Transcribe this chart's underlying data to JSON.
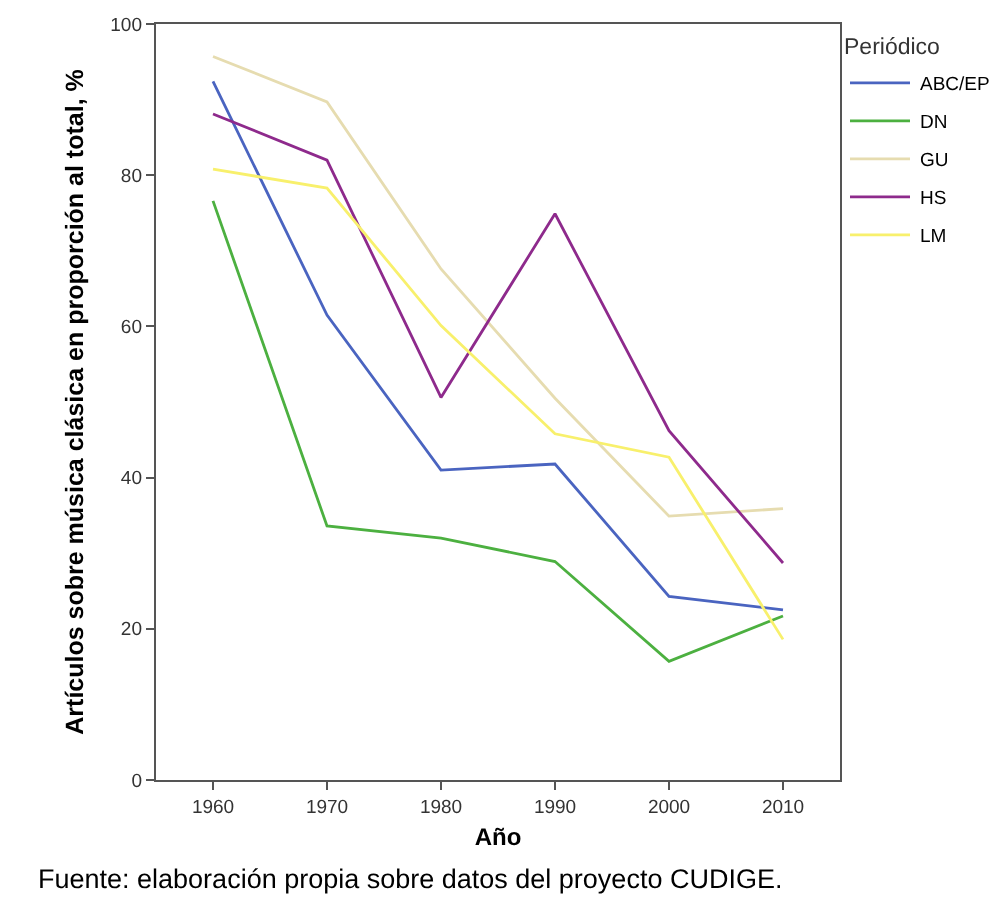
{
  "chart_data": {
    "type": "line",
    "xlabel": "Año",
    "ylabel": "Artículos sobre música clásica en proporción al total, %",
    "legend_title": "Periódico",
    "x": [
      1960,
      1970,
      1980,
      1990,
      2000,
      2010
    ],
    "series": [
      {
        "name": "ABC/EP",
        "color": "#4a64c0",
        "values": [
          92.4,
          61.5,
          41.0,
          41.8,
          24.3,
          22.5
        ]
      },
      {
        "name": "DN",
        "color": "#4cb040",
        "values": [
          76.6,
          33.6,
          32.0,
          28.9,
          15.7,
          21.7
        ]
      },
      {
        "name": "GU",
        "color": "#e6dcb0",
        "values": [
          95.7,
          89.7,
          67.6,
          50.5,
          34.9,
          35.9
        ]
      },
      {
        "name": "HS",
        "color": "#8e2a8c",
        "values": [
          88.1,
          82.0,
          50.6,
          74.9,
          46.2,
          28.7
        ]
      },
      {
        "name": "LM",
        "color": "#f8f06c",
        "values": [
          80.8,
          78.3,
          60.1,
          45.8,
          42.7,
          18.6
        ]
      }
    ],
    "xlim": [
      1955,
      2015
    ],
    "xticks": [
      1960,
      1970,
      1980,
      1990,
      2000,
      2010
    ],
    "ylim": [
      0,
      100
    ],
    "yticks": [
      0,
      20,
      40,
      60,
      80,
      100
    ],
    "grid": false,
    "legend": "right",
    "marker": "none",
    "line_style": "solid",
    "annotations": [
      "Fuente: elaboración propia sobre datos del proyecto CUDIGE."
    ]
  }
}
